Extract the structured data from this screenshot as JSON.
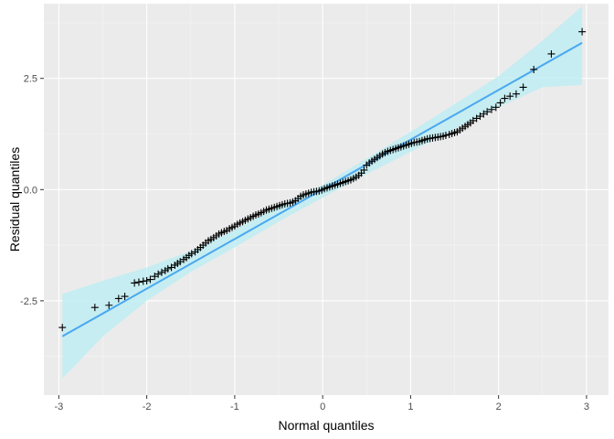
{
  "chart_data": {
    "type": "scatter",
    "title": "",
    "xlabel": "Normal quantiles",
    "ylabel": "Residual quantiles",
    "xlim": [
      -3.17,
      3.25
    ],
    "ylim": [
      -4.62,
      4.18
    ],
    "x_ticks": [
      -3,
      -2,
      -1,
      0,
      1,
      2,
      3
    ],
    "x_tick_labels": [
      "-3",
      "-2",
      "-1",
      "0",
      "1",
      "2",
      "3"
    ],
    "y_ticks": [
      -2.5,
      0.0,
      2.5
    ],
    "y_tick_labels": [
      "-2.5",
      "0.0",
      "2.5"
    ],
    "grid": true,
    "legend": "none",
    "point_shape": "plus",
    "colors": {
      "panel": "#ebebeb",
      "grid_major": "#ffffff",
      "grid_minor": "#f5f5f5",
      "points": "#000000",
      "line": "#4aa8f0",
      "band": "#bdeef3"
    },
    "points": {
      "x": [
        -2.96,
        -2.59,
        -2.43,
        -2.32,
        -2.25,
        -2.14,
        -2.09,
        -2.04,
        -2.0,
        -1.96,
        -1.91,
        -1.87,
        -1.83,
        -1.79,
        -1.76,
        -1.72,
        -1.68,
        -1.65,
        -1.62,
        -1.58,
        -1.55,
        -1.52,
        -1.49,
        -1.45,
        -1.42,
        -1.39,
        -1.36,
        -1.33,
        -1.3,
        -1.27,
        -1.24,
        -1.21,
        -1.18,
        -1.15,
        -1.12,
        -1.09,
        -1.06,
        -1.03,
        -1.0,
        -0.97,
        -0.94,
        -0.91,
        -0.88,
        -0.85,
        -0.82,
        -0.79,
        -0.76,
        -0.73,
        -0.7,
        -0.67,
        -0.64,
        -0.61,
        -0.58,
        -0.55,
        -0.52,
        -0.49,
        -0.46,
        -0.43,
        -0.4,
        -0.37,
        -0.34,
        -0.31,
        -0.28,
        -0.25,
        -0.22,
        -0.19,
        -0.16,
        -0.13,
        -0.1,
        -0.07,
        -0.04,
        -0.01,
        0.02,
        0.05,
        0.08,
        0.11,
        0.14,
        0.17,
        0.2,
        0.23,
        0.26,
        0.29,
        0.32,
        0.35,
        0.38,
        0.41,
        0.44,
        0.47,
        0.5,
        0.53,
        0.56,
        0.59,
        0.62,
        0.65,
        0.68,
        0.71,
        0.74,
        0.77,
        0.8,
        0.83,
        0.86,
        0.89,
        0.92,
        0.95,
        0.98,
        1.01,
        1.04,
        1.07,
        1.1,
        1.13,
        1.16,
        1.19,
        1.22,
        1.25,
        1.28,
        1.31,
        1.34,
        1.37,
        1.4,
        1.44,
        1.47,
        1.5,
        1.53,
        1.56,
        1.59,
        1.62,
        1.65,
        1.68,
        1.71,
        1.75,
        1.79,
        1.83,
        1.87,
        1.92,
        1.97,
        2.02,
        2.07,
        2.13,
        2.2,
        2.28,
        2.4,
        2.6,
        2.95
      ],
      "y": [
        -3.1,
        -2.65,
        -2.6,
        -2.45,
        -2.4,
        -2.1,
        -2.08,
        -2.06,
        -2.05,
        -2.02,
        -1.95,
        -1.9,
        -1.86,
        -1.82,
        -1.78,
        -1.75,
        -1.7,
        -1.66,
        -1.62,
        -1.57,
        -1.53,
        -1.48,
        -1.44,
        -1.4,
        -1.35,
        -1.3,
        -1.25,
        -1.2,
        -1.15,
        -1.12,
        -1.08,
        -1.04,
        -1.0,
        -0.97,
        -0.94,
        -0.92,
        -0.88,
        -0.85,
        -0.82,
        -0.78,
        -0.75,
        -0.72,
        -0.69,
        -0.66,
        -0.63,
        -0.6,
        -0.57,
        -0.55,
        -0.52,
        -0.49,
        -0.46,
        -0.44,
        -0.42,
        -0.4,
        -0.38,
        -0.36,
        -0.34,
        -0.32,
        -0.31,
        -0.3,
        -0.28,
        -0.25,
        -0.2,
        -0.15,
        -0.12,
        -0.1,
        -0.08,
        -0.06,
        -0.05,
        -0.04,
        -0.03,
        -0.01,
        0.02,
        0.04,
        0.06,
        0.08,
        0.1,
        0.12,
        0.14,
        0.16,
        0.18,
        0.2,
        0.22,
        0.25,
        0.28,
        0.32,
        0.37,
        0.44,
        0.55,
        0.6,
        0.64,
        0.68,
        0.72,
        0.76,
        0.8,
        0.83,
        0.86,
        0.88,
        0.9,
        0.92,
        0.94,
        0.96,
        0.98,
        1.0,
        1.02,
        1.04,
        1.06,
        1.07,
        1.08,
        1.1,
        1.12,
        1.14,
        1.15,
        1.16,
        1.17,
        1.18,
        1.19,
        1.2,
        1.22,
        1.24,
        1.26,
        1.28,
        1.3,
        1.34,
        1.38,
        1.42,
        1.46,
        1.5,
        1.55,
        1.6,
        1.65,
        1.7,
        1.75,
        1.8,
        1.85,
        1.95,
        2.05,
        2.1,
        2.15,
        2.3,
        2.7,
        3.05,
        3.55
      ]
    },
    "fit_line": {
      "x": [
        -2.96,
        2.95
      ],
      "y": [
        -3.3,
        3.3
      ]
    },
    "confidence_band": {
      "x": [
        -2.96,
        -2.5,
        -2.0,
        -1.5,
        -1.0,
        -0.5,
        0.0,
        0.5,
        1.0,
        1.5,
        2.0,
        2.5,
        2.95
      ],
      "upper": [
        -2.35,
        -2.05,
        -1.75,
        -1.38,
        -0.9,
        -0.38,
        0.1,
        0.7,
        1.3,
        1.92,
        2.55,
        3.35,
        4.12
      ],
      "lower": [
        -4.25,
        -3.3,
        -2.5,
        -1.85,
        -1.3,
        -0.72,
        -0.18,
        0.35,
        0.85,
        1.35,
        1.85,
        2.3,
        2.35
      ]
    }
  }
}
